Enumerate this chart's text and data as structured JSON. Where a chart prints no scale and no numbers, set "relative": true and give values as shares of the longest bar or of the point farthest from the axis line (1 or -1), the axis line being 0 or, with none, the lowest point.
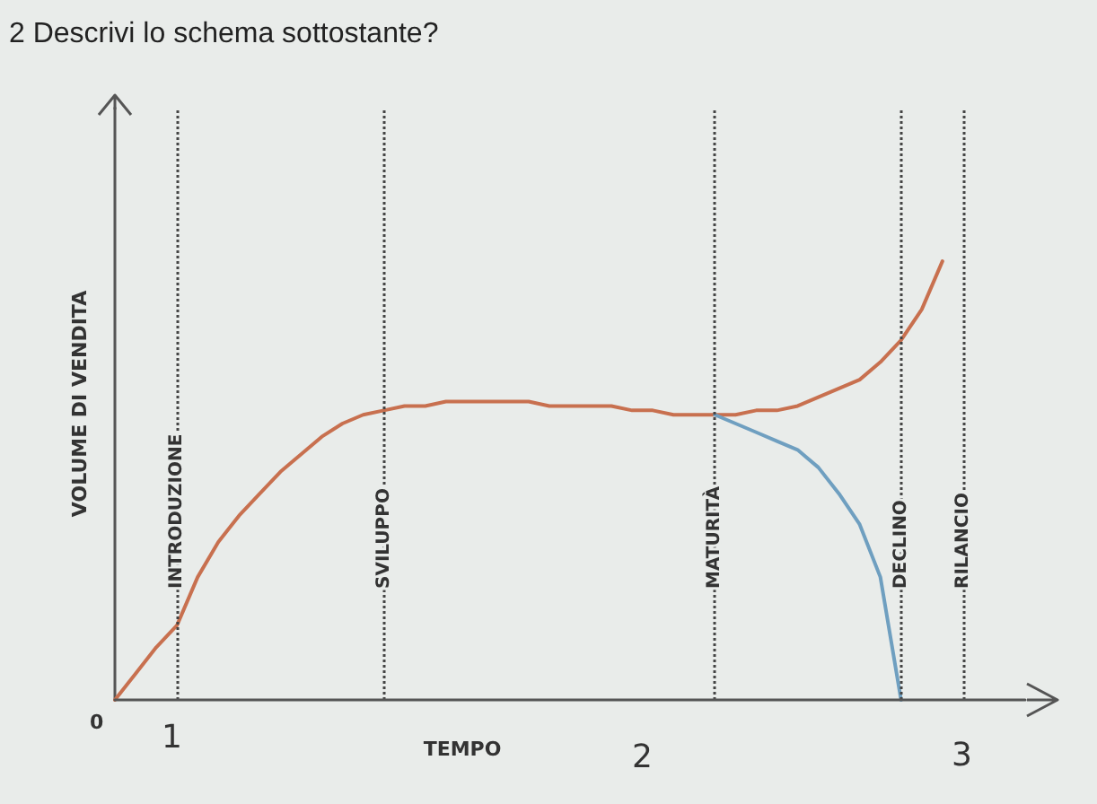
{
  "chart_data": {
    "type": "line",
    "title": "2 Descrivi lo schema sottostante?",
    "xlabel": "TEMPO",
    "ylabel": "VOLUME DI VENDITA",
    "relative": true,
    "tick_labels": "x",
    "grid": false,
    "marker": "none",
    "line_style": "solid",
    "categories": [
      null,
      null,
      null,
      "INTRODUZIONE",
      null,
      null,
      null,
      null,
      null,
      null,
      null,
      null,
      null,
      "SVILUPPO",
      null,
      null,
      null,
      null,
      null,
      null,
      null,
      null,
      null,
      null,
      null,
      null,
      null,
      null,
      null,
      "MATURITÀ",
      null,
      null,
      null,
      null,
      null,
      null,
      null,
      null,
      "DECLINO",
      null,
      null,
      "RILANCIO",
      null,
      null,
      null
    ],
    "series": [
      {
        "color": "#c8704f",
        "values": [
          0,
          0.06,
          0.12,
          0.17,
          0.28,
          0.36,
          0.42,
          0.47,
          0.52,
          0.56,
          0.6,
          0.63,
          0.65,
          0.66,
          0.67,
          0.67,
          0.68,
          0.68,
          0.68,
          0.68,
          0.68,
          0.67,
          0.67,
          0.67,
          0.67,
          0.66,
          0.66,
          0.65,
          0.65,
          0.65,
          0.65,
          0.66,
          0.66,
          0.67,
          0.69,
          0.71,
          0.73,
          0.77,
          0.82,
          0.89,
          1,
          null,
          null,
          null,
          null
        ]
      },
      {
        "color": "#6f9fc0",
        "values": [
          null,
          null,
          null,
          null,
          null,
          null,
          null,
          null,
          null,
          null,
          null,
          null,
          null,
          null,
          null,
          null,
          null,
          null,
          null,
          null,
          null,
          null,
          null,
          null,
          null,
          null,
          null,
          null,
          null,
          0.65,
          0.63,
          0.61,
          0.59,
          0.57,
          0.53,
          0.47,
          0.4,
          0.28,
          0,
          null,
          null,
          null,
          null,
          null,
          null
        ]
      }
    ],
    "ref_lines": [
      {
        "axis": "x",
        "value": "INTRODUZIONE",
        "line_style": "dotted",
        "color": "#444444"
      },
      {
        "axis": "x",
        "value": "SVILUPPO",
        "line_style": "dotted",
        "color": "#444444"
      },
      {
        "axis": "x",
        "value": "MATURITÀ",
        "line_style": "dotted",
        "color": "#444444"
      },
      {
        "axis": "x",
        "value": "DECLINO",
        "line_style": "dotted",
        "color": "#444444"
      },
      {
        "axis": "x",
        "value": "RILANCIO",
        "line_style": "dotted",
        "color": "#444444"
      }
    ],
    "annotations": [
      "0",
      "1",
      "2",
      "3"
    ]
  }
}
